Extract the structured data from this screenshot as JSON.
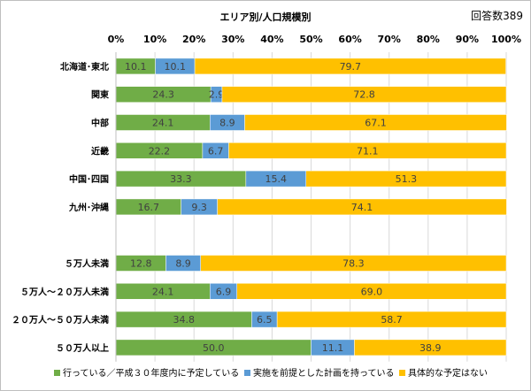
{
  "chart_data": {
    "type": "bar",
    "orientation": "horizontal",
    "stacked": true,
    "title": "エリア別/人口規模別",
    "respondents_label": "回答数389",
    "xlim": [
      0,
      100
    ],
    "x_ticks": [
      "0%",
      "10%",
      "20%",
      "30%",
      "40%",
      "50%",
      "60%",
      "70%",
      "80%",
      "90%",
      "100%"
    ],
    "categories": [
      "北海道･東北",
      "関東",
      "中部",
      "近畿",
      "中国･四国",
      "九州･沖縄",
      "",
      "５万人未満",
      "５万人～２０万人未満",
      "２０万人～５０万人未満",
      "５０万人以上"
    ],
    "series": [
      {
        "name": "行っている／平成３０年度内に予定している",
        "color": "#70ad47",
        "values": [
          10.1,
          24.3,
          24.1,
          22.2,
          33.3,
          16.7,
          null,
          12.8,
          24.1,
          34.8,
          50.0
        ]
      },
      {
        "name": "実施を前提とした計画を持っている",
        "color": "#5b9bd5",
        "values": [
          10.1,
          2.9,
          8.9,
          6.7,
          15.4,
          9.3,
          null,
          8.9,
          6.9,
          6.5,
          11.1
        ]
      },
      {
        "name": "具体的な予定はない",
        "color": "#ffc000",
        "values": [
          79.7,
          72.8,
          67.1,
          71.1,
          51.3,
          74.1,
          null,
          78.3,
          69.0,
          58.7,
          38.9
        ]
      }
    ],
    "gridlines": true,
    "legend_position": "bottom"
  }
}
